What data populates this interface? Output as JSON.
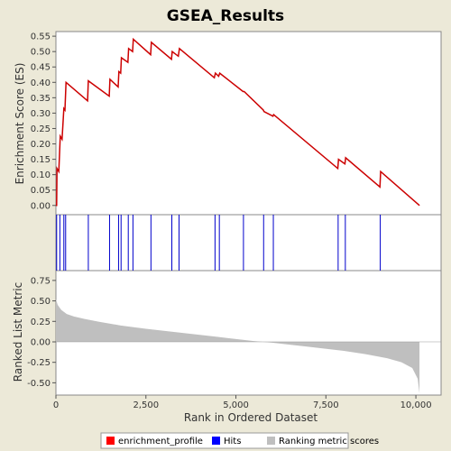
{
  "chart_data": {
    "type": "line",
    "title": "GSEA_Results",
    "colors": {
      "enrichment_profile": "#cc0000",
      "hits": "#0000cc",
      "ranking": "#bfbfbf",
      "background": "#ece9d8",
      "panel": "#ffffff"
    },
    "legend": {
      "placement": "bottom",
      "entries": [
        {
          "label": "enrichment_profile",
          "color": "#ff0000"
        },
        {
          "label": "Hits",
          "color": "#0000ff"
        },
        {
          "label": "Ranking metric scores",
          "color": "#bfbfbf"
        }
      ]
    },
    "x_axis": {
      "label": "Rank in Ordered Dataset",
      "range": [
        0,
        10700
      ],
      "ticks": [
        0,
        2500,
        5000,
        7500,
        10000
      ],
      "tick_labels": [
        "0",
        "2,500",
        "5,000",
        "7,500",
        "10,000"
      ]
    },
    "es_panel": {
      "ylabel": "Enrichment Score (ES)",
      "ylim": [
        -0.03,
        0.565
      ],
      "ticks": [
        0.0,
        0.05,
        0.1,
        0.15,
        0.2,
        0.25,
        0.3,
        0.35,
        0.4,
        0.45,
        0.5,
        0.55
      ],
      "tick_labels": [
        "0.00",
        "0.05",
        "0.10",
        "0.15",
        "0.20",
        "0.25",
        "0.30",
        "0.35",
        "0.40",
        "0.45",
        "0.50",
        "0.55"
      ],
      "profile_x": [
        0,
        20,
        30,
        80,
        120,
        170,
        220,
        250,
        280,
        880,
        900,
        1480,
        1500,
        1730,
        1750,
        1800,
        1820,
        2000,
        2020,
        2130,
        2150,
        2630,
        2650,
        3210,
        3230,
        3400,
        3430,
        4400,
        4430,
        4520,
        4550,
        5200,
        5230,
        5760,
        5780,
        6030,
        6050,
        7830,
        7850,
        8030,
        8050,
        9000,
        9020,
        10100
      ],
      "profile_y": [
        0.0,
        0.0,
        0.12,
        0.11,
        0.225,
        0.215,
        0.315,
        0.31,
        0.4,
        0.34,
        0.405,
        0.355,
        0.41,
        0.385,
        0.435,
        0.43,
        0.48,
        0.465,
        0.51,
        0.5,
        0.54,
        0.49,
        0.53,
        0.475,
        0.5,
        0.485,
        0.51,
        0.415,
        0.43,
        0.42,
        0.43,
        0.37,
        0.37,
        0.31,
        0.305,
        0.29,
        0.295,
        0.12,
        0.15,
        0.135,
        0.155,
        0.06,
        0.11,
        0.0
      ]
    },
    "hits": [
      20,
      110,
      220,
      270,
      900,
      1490,
      1740,
      1810,
      2010,
      2140,
      2640,
      3220,
      3420,
      4420,
      4540,
      5210,
      5770,
      6040,
      7840,
      8040,
      9010
    ],
    "ranking_panel": {
      "ylabel": "Ranked List Metric",
      "ylim": [
        -0.65,
        0.87
      ],
      "ticks": [
        -0.5,
        -0.25,
        0.0,
        0.25,
        0.5,
        0.75
      ],
      "tick_labels": [
        "-0.50",
        "-0.25",
        "0.00",
        "0.25",
        "0.50",
        "0.75"
      ],
      "metric_x": [
        0,
        50,
        150,
        300,
        500,
        800,
        1200,
        1800,
        2500,
        3500,
        4500,
        5500,
        6000,
        7000,
        8000,
        8600,
        9200,
        9600,
        9900,
        10050,
        10100
      ],
      "metric_y": [
        0.52,
        0.45,
        0.39,
        0.34,
        0.31,
        0.28,
        0.245,
        0.2,
        0.16,
        0.11,
        0.06,
        0.01,
        -0.01,
        -0.06,
        -0.11,
        -0.15,
        -0.2,
        -0.25,
        -0.32,
        -0.45,
        -0.63
      ]
    }
  }
}
